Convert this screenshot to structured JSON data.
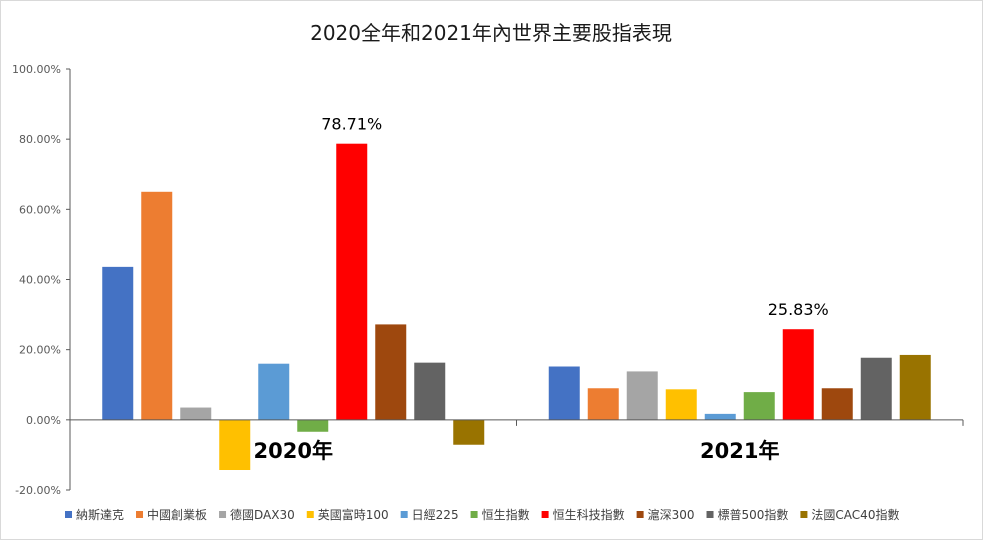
{
  "chart_data": {
    "type": "bar",
    "title": "2020全年和2021年內世界主要股指表現",
    "categories": [
      "2020年",
      "2021年"
    ],
    "ylim": [
      -20,
      100
    ],
    "yticks": [
      "-20.00%",
      "0.00%",
      "20.00%",
      "40.00%",
      "60.00%",
      "80.00%",
      "100.00%"
    ],
    "grid": false,
    "legend_position": "bottom",
    "series": [
      {
        "name": "納斯達克",
        "color": "#4472c4",
        "values": [
          43.6,
          15.2
        ]
      },
      {
        "name": "中國創業板",
        "color": "#ed7d31",
        "values": [
          65.0,
          9.0
        ]
      },
      {
        "name": "德國DAX30",
        "color": "#a5a5a5",
        "values": [
          3.5,
          13.8
        ]
      },
      {
        "name": "英國富時100",
        "color": "#ffc000",
        "values": [
          -14.3,
          8.7
        ]
      },
      {
        "name": "日經225",
        "color": "#5b9bd5",
        "values": [
          16.0,
          1.7
        ]
      },
      {
        "name": "恒生指數",
        "color": "#70ad47",
        "values": [
          -3.4,
          7.9
        ]
      },
      {
        "name": "恒生科技指數",
        "color": "#ff0000",
        "values": [
          78.71,
          25.83
        ]
      },
      {
        "name": "滬深300",
        "color": "#9e480e",
        "values": [
          27.2,
          9.0
        ]
      },
      {
        "name": "標普500指數",
        "color": "#636363",
        "values": [
          16.3,
          17.7
        ]
      },
      {
        "name": "法國CAC40指數",
        "color": "#997300",
        "values": [
          -7.1,
          18.5
        ]
      }
    ],
    "annotations": [
      {
        "text": "78.71%",
        "series": 6,
        "category": 0
      },
      {
        "text": "25.83%",
        "series": 6,
        "category": 1
      }
    ]
  }
}
